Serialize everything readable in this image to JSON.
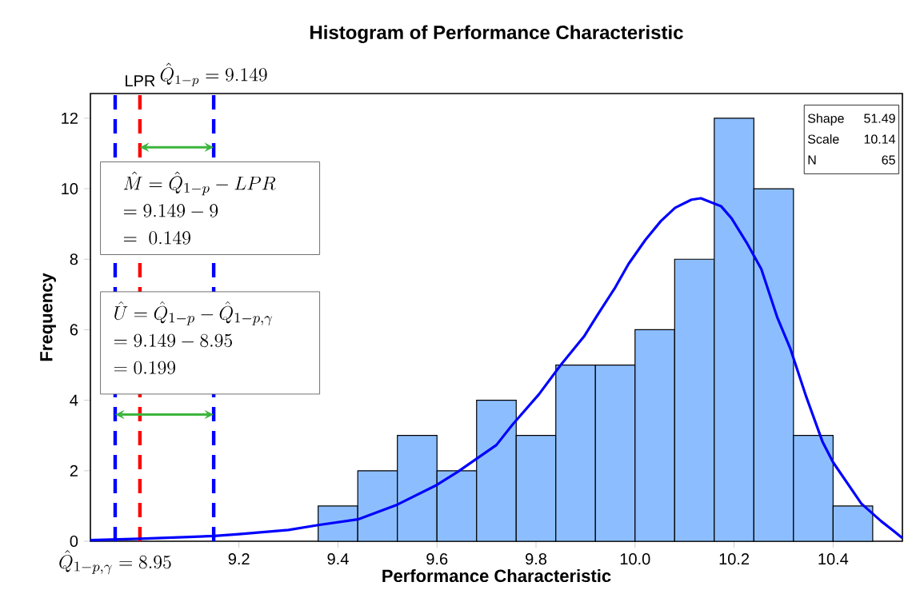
{
  "chart_data": {
    "type": "histogram",
    "title": "Histogram of Performance Characteristic",
    "xlabel": "Performance Characteristic",
    "ylabel": "Frequency",
    "bins": [
      9.36,
      9.44,
      9.52,
      9.6,
      9.68,
      9.76,
      9.84,
      9.92,
      10.0,
      10.08,
      10.16,
      10.24,
      10.32,
      10.4,
      10.48
    ],
    "values": [
      1,
      2,
      3,
      2,
      4,
      3,
      5,
      5,
      6,
      8,
      12,
      10,
      3,
      1
    ],
    "color": "#8cbeff",
    "series": [
      {
        "type": "line",
        "color": "#0000ff",
        "x": [
          8.9,
          9.0,
          9.1,
          9.15,
          9.2,
          9.3,
          9.36,
          9.44,
          9.52,
          9.6,
          9.642,
          9.72,
          9.752,
          9.806,
          9.85,
          9.898,
          9.925,
          9.96,
          9.987,
          10.021,
          10.052,
          10.081,
          10.114,
          10.133,
          10.174,
          10.195,
          10.225,
          10.255,
          10.287,
          10.314,
          10.346,
          10.379,
          10.4,
          10.457,
          10.497,
          10.52,
          10.54
        ],
        "values": [
          0.03,
          0.07,
          0.12,
          0.15,
          0.2,
          0.32,
          0.46,
          0.62,
          1.04,
          1.6,
          1.97,
          2.73,
          3.3,
          4.17,
          5.0,
          5.83,
          6.44,
          7.2,
          7.87,
          8.55,
          9.08,
          9.46,
          9.69,
          9.73,
          9.5,
          9.16,
          8.48,
          7.72,
          6.36,
          5.45,
          4.09,
          2.81,
          2.24,
          1.07,
          0.57,
          0.32,
          0.09
        ]
      }
    ],
    "xlim": [
      8.9,
      10.54
    ],
    "ylim": [
      0,
      12.7
    ],
    "xticks": [
      9.2,
      9.4,
      9.6,
      9.8,
      {
        "value": 10,
        "label": "10.0"
      },
      10.2,
      10.4
    ],
    "yticks": [
      0,
      2,
      4,
      6,
      8,
      10,
      12
    ],
    "ref_lines": [
      {
        "axis": "x",
        "value": 9,
        "label": "LPR",
        "color": "#ff0000",
        "line_style": "dashed"
      },
      {
        "axis": "x",
        "value": 9.149,
        "label": "\\hat{Q}_{1-p} = 9.149",
        "color": "#0000ff",
        "line_style": "dashed"
      },
      {
        "axis": "x",
        "value": 8.95,
        "color": "#0000ff",
        "line_style": "dashed"
      }
    ],
    "annotations": [
      "\\hat{M} = \\hat{Q}_{1-p} - LPR",
      "= 9.149 - 9",
      "=~ 0.149",
      "\\hat{U} = \\hat{Q}_{1-p} - \\hat{Q}_{1-p,\\gamma}",
      "= 9.149 - 8.95",
      "= 0.199",
      {
        "text": "\\hat{Q}_{1-p,\\gamma} = 8.95",
        "x": 8.95,
        "y": 0
      },
      "Shape",
      "51.49",
      "Scale",
      "10.14",
      "N",
      "65"
    ],
    "marker": "none"
  }
}
